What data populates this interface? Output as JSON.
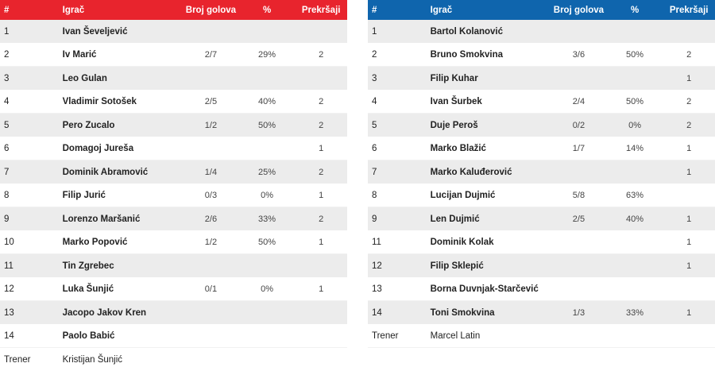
{
  "headers": {
    "num": "#",
    "player": "Igrač",
    "goals": "Broj golova",
    "pct": "%",
    "fouls": "Prekršaji"
  },
  "colors": {
    "home_header": "#e8242d",
    "away_header": "#0f65ad",
    "stripe": "#ececec"
  },
  "home": {
    "players": [
      {
        "num": "1",
        "name": "Ivan Ševeljević",
        "goals": "",
        "pct": "",
        "fouls": ""
      },
      {
        "num": "2",
        "name": "Iv Marić",
        "goals": "2/7",
        "pct": "29%",
        "fouls": "2"
      },
      {
        "num": "3",
        "name": "Leo Gulan",
        "goals": "",
        "pct": "",
        "fouls": ""
      },
      {
        "num": "4",
        "name": "Vladimir Sotošek",
        "goals": "2/5",
        "pct": "40%",
        "fouls": "2"
      },
      {
        "num": "5",
        "name": "Pero Zucalo",
        "goals": "1/2",
        "pct": "50%",
        "fouls": "2"
      },
      {
        "num": "6",
        "name": "Domagoj Jureša",
        "goals": "",
        "pct": "",
        "fouls": "1"
      },
      {
        "num": "7",
        "name": "Dominik Abramović",
        "goals": "1/4",
        "pct": "25%",
        "fouls": "2"
      },
      {
        "num": "8",
        "name": "Filip Jurić",
        "goals": "0/3",
        "pct": "0%",
        "fouls": "1"
      },
      {
        "num": "9",
        "name": "Lorenzo Maršanić",
        "goals": "2/6",
        "pct": "33%",
        "fouls": "2"
      },
      {
        "num": "10",
        "name": "Marko Popović",
        "goals": "1/2",
        "pct": "50%",
        "fouls": "1"
      },
      {
        "num": "11",
        "name": "Tin Zgrebec",
        "goals": "",
        "pct": "",
        "fouls": ""
      },
      {
        "num": "12",
        "name": "Luka Šunjić",
        "goals": "0/1",
        "pct": "0%",
        "fouls": "1"
      },
      {
        "num": "13",
        "name": "Jacopo Jakov Kren",
        "goals": "",
        "pct": "",
        "fouls": ""
      },
      {
        "num": "14",
        "name": "Paolo Babić",
        "goals": "",
        "pct": "",
        "fouls": ""
      }
    ],
    "coach_label": "Trener",
    "coach_name": "Kristijan Šunjić"
  },
  "away": {
    "players": [
      {
        "num": "1",
        "name": "Bartol Kolanović",
        "goals": "",
        "pct": "",
        "fouls": ""
      },
      {
        "num": "2",
        "name": "Bruno Smokvina",
        "goals": "3/6",
        "pct": "50%",
        "fouls": "2"
      },
      {
        "num": "3",
        "name": "Filip Kuhar",
        "goals": "",
        "pct": "",
        "fouls": "1"
      },
      {
        "num": "4",
        "name": "Ivan Šurbek",
        "goals": "2/4",
        "pct": "50%",
        "fouls": "2"
      },
      {
        "num": "5",
        "name": "Duje Peroš",
        "goals": "0/2",
        "pct": "0%",
        "fouls": "2"
      },
      {
        "num": "6",
        "name": "Marko Blažić",
        "goals": "1/7",
        "pct": "14%",
        "fouls": "1"
      },
      {
        "num": "7",
        "name": "Marko Kaluđerović",
        "goals": "",
        "pct": "",
        "fouls": "1"
      },
      {
        "num": "8",
        "name": "Lucijan Dujmić",
        "goals": "5/8",
        "pct": "63%",
        "fouls": ""
      },
      {
        "num": "9",
        "name": "Len Dujmić",
        "goals": "2/5",
        "pct": "40%",
        "fouls": "1"
      },
      {
        "num": "11",
        "name": "Dominik Kolak",
        "goals": "",
        "pct": "",
        "fouls": "1"
      },
      {
        "num": "12",
        "name": "Filip Sklepić",
        "goals": "",
        "pct": "",
        "fouls": "1"
      },
      {
        "num": "13",
        "name": "Borna Duvnjak-Starčević",
        "goals": "",
        "pct": "",
        "fouls": ""
      },
      {
        "num": "14",
        "name": "Toni Smokvina",
        "goals": "1/3",
        "pct": "33%",
        "fouls": "1"
      }
    ],
    "coach_label": "Trener",
    "coach_name": "Marcel Latin"
  }
}
